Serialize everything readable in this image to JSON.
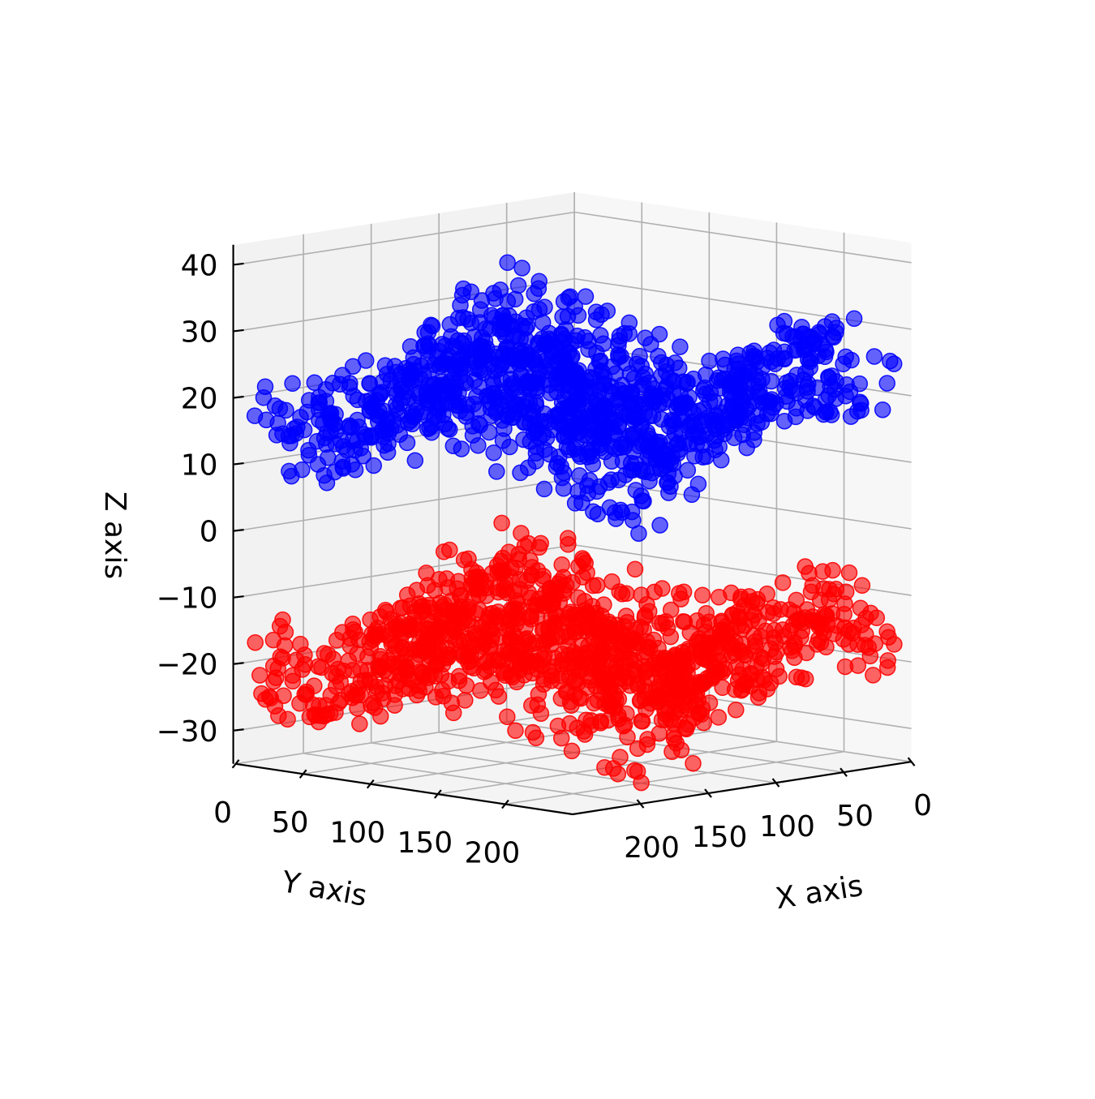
{
  "chart_data": {
    "type": "scatter",
    "projection": "3d",
    "title": "",
    "xlabel": "X axis",
    "ylabel": "Y axis",
    "zlabel": "Z axis",
    "xlim": [
      0,
      250
    ],
    "ylim": [
      0,
      250
    ],
    "zlim": [
      -35,
      43
    ],
    "x_ticks": [
      0,
      50,
      100,
      150,
      200
    ],
    "y_ticks": [
      0,
      50,
      100,
      150,
      200
    ],
    "z_ticks": [
      -30,
      -20,
      -10,
      0,
      10,
      20,
      30,
      40
    ],
    "grid": true,
    "legend": "none",
    "series": [
      {
        "color": "#0000ff",
        "marker": "circle",
        "alpha": 0.6,
        "z_range": [
          5,
          37
        ],
        "points_shown": "approx. 2000 points forming a wavy band",
        "profile": "z ≈ 20 + 10·sin(x/40)·cos(y/40) + noise"
      },
      {
        "color": "#ff0000",
        "marker": "circle",
        "alpha": 0.6,
        "z_range": [
          -32,
          -2
        ],
        "points_shown": "approx. 2000 points forming a wavy band",
        "profile": "z ≈ -18 + 10·sin(x/40)·cos(y/40) + noise"
      }
    ]
  }
}
